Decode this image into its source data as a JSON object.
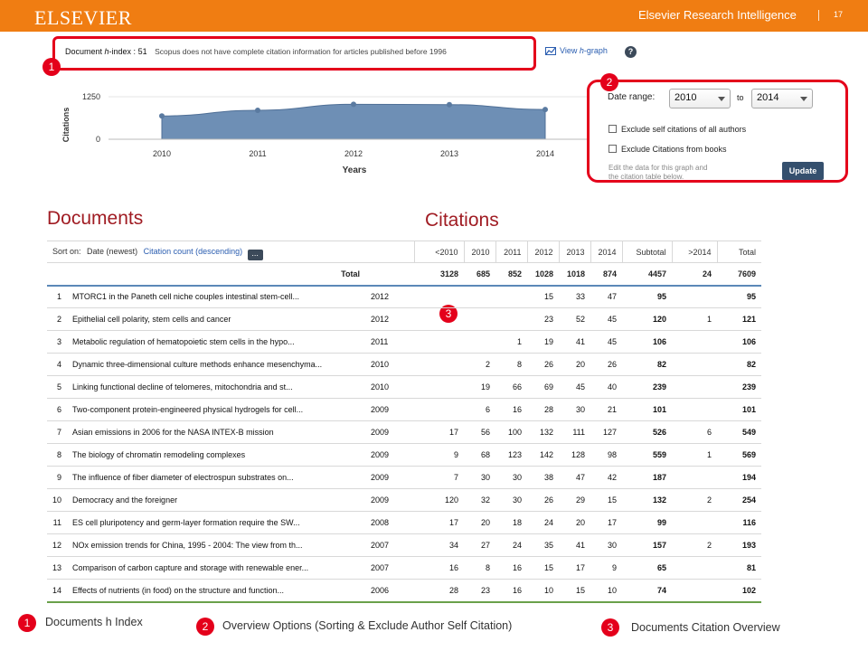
{
  "banner": {
    "logo": "ELSEVIER",
    "product": "Elsevier Research Intelligence",
    "page_number": "17"
  },
  "hindex": {
    "label_prefix": "Document ",
    "label_h": "h",
    "label_suffix": "-index : ",
    "value": "51",
    "note": "Scopus does not have complete citation information for articles published before 1996",
    "view_graph_prefix": "View ",
    "view_graph_h": "h",
    "view_graph_suffix": "-graph",
    "help": "?"
  },
  "chart_data": {
    "type": "area",
    "x": [
      "2010",
      "2011",
      "2012",
      "2013",
      "2014"
    ],
    "values": [
      685,
      852,
      1028,
      1018,
      874
    ],
    "ylabel": "Citations",
    "xlabel": "Years",
    "yticks": [
      "1250",
      "0"
    ],
    "ylim": [
      0,
      1250
    ],
    "color": "#6e8fb5"
  },
  "options": {
    "date_range_label": "Date range:",
    "from_year": "2010",
    "to_label": "to",
    "to_year": "2014",
    "exclude_self": "Exclude self citations of all authors",
    "exclude_books": "Exclude Citations from books",
    "hint_line1": "Edit the data for this graph and",
    "hint_line2": "the citation table below.",
    "update": "Update"
  },
  "sections": {
    "documents": "Documents",
    "citations": "Citations"
  },
  "sort": {
    "label": "Sort on:",
    "current": "Date (newest)",
    "alt": "Citation count (descending)",
    "more": "..."
  },
  "table": {
    "columns": [
      "<2010",
      "2010",
      "2011",
      "2012",
      "2013",
      "2014",
      "Subtotal",
      ">2014",
      "Total"
    ],
    "total_label": "Total",
    "totals": [
      "3128",
      "685",
      "852",
      "1028",
      "1018",
      "874",
      "4457",
      "24",
      "7609"
    ],
    "rows": [
      {
        "n": "1",
        "title": "MTORC1 in the Paneth cell niche couples intestinal stem-cell...",
        "year": "2012",
        "v": [
          "",
          "",
          "",
          "15",
          "33",
          "47",
          "95",
          "",
          "95"
        ]
      },
      {
        "n": "2",
        "title": "Epithelial cell polarity, stem cells and cancer",
        "year": "2012",
        "v": [
          "",
          "",
          "",
          "23",
          "52",
          "45",
          "120",
          "1",
          "121"
        ]
      },
      {
        "n": "3",
        "title": "Metabolic regulation of hematopoietic stem cells in the hypo...",
        "year": "2011",
        "v": [
          "",
          "",
          "1",
          "19",
          "41",
          "45",
          "106",
          "",
          "106"
        ]
      },
      {
        "n": "4",
        "title": "Dynamic three-dimensional culture methods enhance mesenchyma...",
        "year": "2010",
        "v": [
          "",
          "2",
          "8",
          "26",
          "20",
          "26",
          "82",
          "",
          "82"
        ]
      },
      {
        "n": "5",
        "title": "Linking functional decline of telomeres, mitochondria and st...",
        "year": "2010",
        "v": [
          "",
          "19",
          "66",
          "69",
          "45",
          "40",
          "239",
          "",
          "239"
        ]
      },
      {
        "n": "6",
        "title": "Two-component protein-engineered physical hydrogels for cell...",
        "year": "2009",
        "v": [
          "",
          "6",
          "16",
          "28",
          "30",
          "21",
          "101",
          "",
          "101"
        ]
      },
      {
        "n": "7",
        "title": "Asian emissions in 2006 for the NASA INTEX-B mission",
        "year": "2009",
        "v": [
          "17",
          "56",
          "100",
          "132",
          "111",
          "127",
          "526",
          "6",
          "549"
        ]
      },
      {
        "n": "8",
        "title": "The biology of chromatin remodeling complexes",
        "year": "2009",
        "v": [
          "9",
          "68",
          "123",
          "142",
          "128",
          "98",
          "559",
          "1",
          "569"
        ]
      },
      {
        "n": "9",
        "title": "The influence of fiber diameter of electrospun substrates on...",
        "year": "2009",
        "v": [
          "7",
          "30",
          "30",
          "38",
          "47",
          "42",
          "187",
          "",
          "194"
        ]
      },
      {
        "n": "10",
        "title": "Democracy and the foreigner",
        "year": "2009",
        "v": [
          "120",
          "32",
          "30",
          "26",
          "29",
          "15",
          "132",
          "2",
          "254"
        ]
      },
      {
        "n": "11",
        "title": "ES cell pluripotency and germ-layer formation require the SW...",
        "year": "2008",
        "v": [
          "17",
          "20",
          "18",
          "24",
          "20",
          "17",
          "99",
          "",
          "116"
        ]
      },
      {
        "n": "12",
        "title": "NOx emission trends for China, 1995 - 2004: The view from th...",
        "year": "2007",
        "v": [
          "34",
          "27",
          "24",
          "35",
          "41",
          "30",
          "157",
          "2",
          "193"
        ]
      },
      {
        "n": "13",
        "title": "Comparison of carbon capture and storage with renewable ener...",
        "year": "2007",
        "v": [
          "16",
          "8",
          "16",
          "15",
          "17",
          "9",
          "65",
          "",
          "81"
        ]
      },
      {
        "n": "14",
        "title": "Effects of nutrients (in food) on the structure and function...",
        "year": "2006",
        "v": [
          "28",
          "23",
          "16",
          "10",
          "15",
          "10",
          "74",
          "",
          "102"
        ]
      }
    ]
  },
  "callouts": {
    "one": "1",
    "two": "2",
    "three": "3"
  },
  "legend": {
    "item1": "Documents h Index",
    "item2": "Overview Options (Sorting & Exclude Author Self Citation)",
    "item3": "Documents Citation Overview"
  }
}
